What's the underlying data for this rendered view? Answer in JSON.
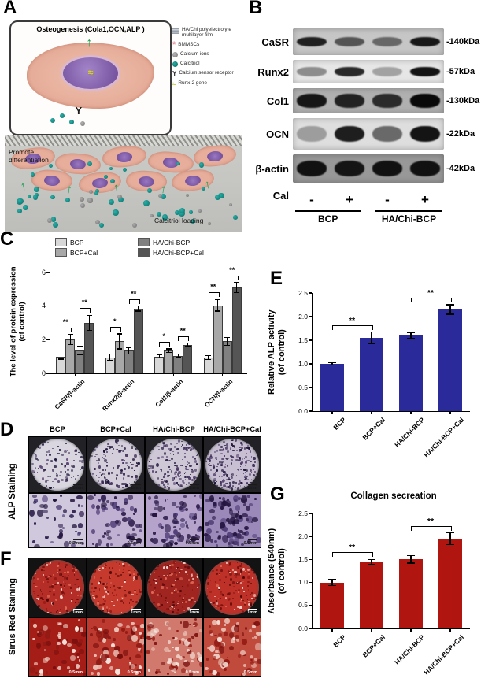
{
  "panels": {
    "A": {
      "label": "A",
      "box_title": "Osteogenesis (Cola1,OCN,ALP )",
      "legend": [
        {
          "icon": "film",
          "text": "HA/Chi polyelectrolyte multilayer film"
        },
        {
          "icon": "bmmsc",
          "text": "BMMSCs"
        },
        {
          "icon": "calcium-ion",
          "text": "Calcium ions"
        },
        {
          "icon": "calcitriol",
          "text": "Calcitriol"
        },
        {
          "icon": "receptor",
          "text": "Calcium sensor receptor"
        },
        {
          "icon": "gene",
          "text": "Runx-2 gene"
        }
      ],
      "promote_label": "Promote\ndifferentiation",
      "calcitriol_label": "Calcitriol loading"
    },
    "B": {
      "label": "B",
      "cal_label": "Cal",
      "cal_signs": [
        "-",
        "+",
        "-",
        "+"
      ],
      "groups": [
        "BCP",
        "HA/Chi-BCP"
      ],
      "rows": [
        {
          "protein": "CaSR",
          "kda": "-140kDa",
          "bg": "#c6c6c6",
          "band_h": 0.38,
          "bands": [
            0.88,
            0.6,
            0.5,
            0.92
          ]
        },
        {
          "protein": "Runx2",
          "kda": "-57kDa",
          "bg": "#e6e6e6",
          "band_h": 0.4,
          "bands": [
            0.4,
            0.85,
            0.3,
            0.95
          ]
        },
        {
          "protein": "Col1",
          "kda": "-130kDa",
          "bg": "#b0b0b0",
          "band_h": 0.55,
          "bands": [
            0.92,
            0.85,
            0.8,
            1.0
          ]
        },
        {
          "protein": "OCN",
          "kda": "-22kDa",
          "bg": "#dedede",
          "band_h": 0.52,
          "bands": [
            0.3,
            0.9,
            0.55,
            0.95
          ]
        },
        {
          "protein": "β-actin",
          "kda": "-42kDa",
          "bg": "#989898",
          "band_h": 0.56,
          "bands": [
            0.95,
            0.92,
            0.95,
            0.95
          ]
        }
      ]
    },
    "C": {
      "label": "C"
    },
    "D": {
      "label": "D",
      "col_headers": [
        "BCP",
        "BCP+Cal",
        "HA/Chi-BCP",
        "HA/Chi-BCP+Cal"
      ],
      "row_label": "ALP Staining",
      "scale_row1": "1mm",
      "scale_row2": "0.5mm"
    },
    "E": {
      "label": "E"
    },
    "F": {
      "label": "F",
      "row_label": "Sirus Red Staining",
      "scale_row1": "1mm",
      "scale_row2": "0.5mm"
    },
    "G": {
      "label": "G"
    }
  },
  "chart_data": [
    {
      "id": "C",
      "type": "bar",
      "categories": [
        "CaSR/β-actin",
        "Runx2/β-actin",
        "Col1/β-actin",
        "OCN/β-actin"
      ],
      "series": [
        {
          "name": "BCP",
          "color": "#d8d8d8",
          "values": [
            1.0,
            0.95,
            1.0,
            0.95
          ],
          "errors": [
            0.15,
            0.2,
            0.1,
            0.12
          ]
        },
        {
          "name": "BCP+Cal",
          "color": "#a8a8a8",
          "values": [
            2.0,
            1.9,
            1.35,
            4.05
          ],
          "errors": [
            0.3,
            0.45,
            0.1,
            0.35
          ]
        },
        {
          "name": "HA/Chi-BCP",
          "color": "#808080",
          "values": [
            1.35,
            1.35,
            1.05,
            1.9
          ],
          "errors": [
            0.25,
            0.2,
            0.1,
            0.25
          ]
        },
        {
          "name": "HA/Chi-BCP+Cal",
          "color": "#555555",
          "values": [
            3.0,
            3.85,
            1.7,
            5.1
          ],
          "errors": [
            0.45,
            0.15,
            0.1,
            0.3
          ]
        }
      ],
      "ylabel": "The level of protein expression\n(of control)",
      "ylim": [
        0,
        6
      ],
      "yticks": [
        0,
        2,
        4,
        6
      ],
      "grid": false,
      "significance": [
        {
          "cat": 0,
          "from": 0,
          "to": 1,
          "label": "**"
        },
        {
          "cat": 0,
          "from": 2,
          "to": 3,
          "label": "**"
        },
        {
          "cat": 1,
          "from": 0,
          "to": 1,
          "label": "*"
        },
        {
          "cat": 1,
          "from": 2,
          "to": 3,
          "label": "**"
        },
        {
          "cat": 2,
          "from": 0,
          "to": 1,
          "label": "*"
        },
        {
          "cat": 2,
          "from": 2,
          "to": 3,
          "label": "**"
        },
        {
          "cat": 3,
          "from": 0,
          "to": 1,
          "label": "**"
        },
        {
          "cat": 3,
          "from": 2,
          "to": 3,
          "label": "**"
        }
      ]
    },
    {
      "id": "E",
      "type": "bar",
      "categories": [
        "BCP",
        "BCP+Cal",
        "HA/Chi-BCP",
        "HA/Chi-BCP+Cal"
      ],
      "values": [
        1.0,
        1.55,
        1.6,
        2.15
      ],
      "errors": [
        0.03,
        0.12,
        0.06,
        0.1
      ],
      "color": "#2a2a9a",
      "ylabel": "Relative ALP activity\n(of control)",
      "ylim": [
        0,
        2.5
      ],
      "yticks": [
        0.0,
        0.5,
        1.0,
        1.5,
        2.0,
        2.5
      ],
      "grid": false,
      "significance": [
        {
          "from": 0,
          "to": 1,
          "label": "**"
        },
        {
          "from": 2,
          "to": 3,
          "label": "**"
        }
      ]
    },
    {
      "id": "G",
      "type": "bar",
      "title": "Collagen secreation",
      "categories": [
        "BCP",
        "BCP+Cal",
        "HA/Chi-BCP",
        "HA/Chi-BCP+Cal"
      ],
      "values": [
        1.0,
        1.45,
        1.5,
        1.95
      ],
      "errors": [
        0.07,
        0.05,
        0.08,
        0.13
      ],
      "color": "#b01510",
      "ylabel": "Absorbance (540nm)\n(of control)",
      "ylim": [
        0,
        2.5
      ],
      "yticks": [
        0.0,
        0.5,
        1.0,
        1.5,
        2.0,
        2.5
      ],
      "grid": false,
      "significance": [
        {
          "from": 0,
          "to": 1,
          "label": "**"
        },
        {
          "from": 2,
          "to": 3,
          "label": "**"
        }
      ]
    }
  ]
}
